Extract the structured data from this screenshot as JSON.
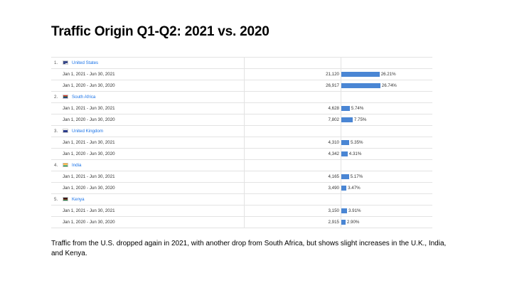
{
  "title": "Traffic Origin Q1-Q2: 2021 vs. 2020",
  "caption": "Traffic from the U.S. dropped again in 2021, with another drop from South Africa, but shows slight increases in the U.K., India, and Kenya.",
  "colors": {
    "bar": "#4a86d4",
    "link": "#1a73e8"
  },
  "countries": [
    {
      "rank": "1.",
      "name": "United States",
      "flag": "us-flag-icon",
      "rows": [
        {
          "range": "Jan 1, 2021 - Jun 30, 2021",
          "value": "21,120",
          "pct": "26.21%",
          "pct_num": 26.21
        },
        {
          "range": "Jan 1, 2020 - Jun 30, 2020",
          "value": "26,917",
          "pct": "26.74%",
          "pct_num": 26.74
        }
      ]
    },
    {
      "rank": "2.",
      "name": "South Africa",
      "flag": "za-flag-icon",
      "rows": [
        {
          "range": "Jan 1, 2021 - Jun 30, 2021",
          "value": "4,628",
          "pct": "5.74%",
          "pct_num": 5.74
        },
        {
          "range": "Jan 1, 2020 - Jun 30, 2020",
          "value": "7,802",
          "pct": "7.75%",
          "pct_num": 7.75
        }
      ]
    },
    {
      "rank": "3.",
      "name": "United Kingdom",
      "flag": "uk-flag-icon",
      "rows": [
        {
          "range": "Jan 1, 2021 - Jun 30, 2021",
          "value": "4,310",
          "pct": "5.35%",
          "pct_num": 5.35
        },
        {
          "range": "Jan 1, 2020 - Jun 30, 2020",
          "value": "4,342",
          "pct": "4.31%",
          "pct_num": 4.31
        }
      ]
    },
    {
      "rank": "4.",
      "name": "India",
      "flag": "in-flag-icon",
      "rows": [
        {
          "range": "Jan 1, 2021 - Jun 30, 2021",
          "value": "4,165",
          "pct": "5.17%",
          "pct_num": 5.17
        },
        {
          "range": "Jan 1, 2020 - Jun 30, 2020",
          "value": "3,490",
          "pct": "3.47%",
          "pct_num": 3.47
        }
      ]
    },
    {
      "rank": "5.",
      "name": "Kenya",
      "flag": "ke-flag-icon",
      "rows": [
        {
          "range": "Jan 1, 2021 - Jun 30, 2021",
          "value": "3,150",
          "pct": "3.91%",
          "pct_num": 3.91
        },
        {
          "range": "Jan 1, 2020 - Jun 30, 2020",
          "value": "2,915",
          "pct": "2.90%",
          "pct_num": 2.9
        }
      ]
    }
  ]
}
